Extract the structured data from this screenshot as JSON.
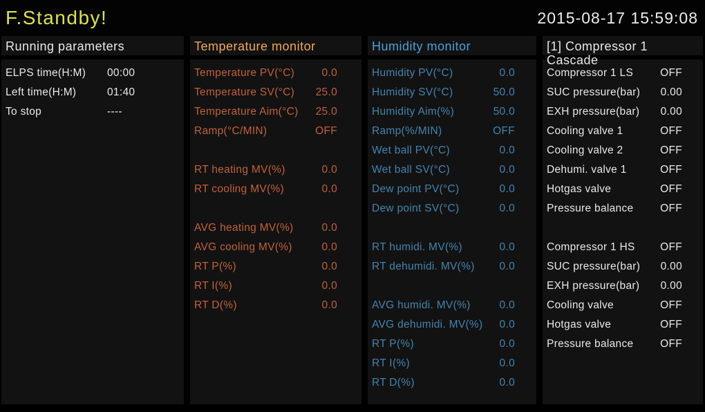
{
  "titlebar": {
    "title": "F.Standby!",
    "datetime": "2015-08-17 15:59:08"
  },
  "colors": {
    "title_green": "#dde24b",
    "text_white": "#e9e9e9",
    "temperature_header_orange": "#f0a855",
    "temperature_row_orange": "#c2613a",
    "humidity_header_blue": "#4aa0d8",
    "humidity_row_blue": "#4384b0",
    "panel_background": "#121212",
    "page_background": "#000000"
  },
  "panels": [
    {
      "header": "Running parameters",
      "header_color": "#e9e9e9",
      "row_color": "#e9e9e9",
      "rows": [
        {
          "label": "ELPS time(H:M)",
          "value": "00:00"
        },
        {
          "label": "Left time(H:M)",
          "value": "01:40"
        },
        {
          "label": "To stop",
          "value": "----"
        }
      ]
    },
    {
      "header": "Temperature monitor",
      "header_color": "#f0a855",
      "row_color": "#c2613a",
      "rows": [
        {
          "label": "Temperature PV(°C)",
          "value": "0.0"
        },
        {
          "label": "Temperature SV(°C)",
          "value": "25.0"
        },
        {
          "label": "Temperature Aim(°C)",
          "value": "25.0"
        },
        {
          "label": "Ramp(°C/MIN)",
          "value": "OFF"
        },
        {
          "label": "",
          "value": ""
        },
        {
          "label": "RT heating MV(%)",
          "value": "0.0"
        },
        {
          "label": "RT cooling MV(%)",
          "value": "0.0"
        },
        {
          "label": "",
          "value": ""
        },
        {
          "label": "AVG heating MV(%)",
          "value": "0.0"
        },
        {
          "label": "AVG cooling MV(%)",
          "value": "0.0"
        },
        {
          "label": "RT P(%)",
          "value": "0.0"
        },
        {
          "label": "RT I(%)",
          "value": "0.0"
        },
        {
          "label": "RT D(%)",
          "value": "0.0"
        }
      ]
    },
    {
      "header": "Humidity monitor",
      "header_color": "#4aa0d8",
      "row_color": "#4384b0",
      "rows": [
        {
          "label": "Humidity PV(°C)",
          "value": "0.0"
        },
        {
          "label": "Humidity SV(°C)",
          "value": "50.0"
        },
        {
          "label": "Humidity Aim(%)",
          "value": "50.0"
        },
        {
          "label": "Ramp(%/MIN)",
          "value": "OFF"
        },
        {
          "label": "Wet ball PV(°C)",
          "value": "0.0"
        },
        {
          "label": "Wet ball SV(°C)",
          "value": "0.0"
        },
        {
          "label": "Dew point PV(°C)",
          "value": "0.0"
        },
        {
          "label": "Dew point SV(°C)",
          "value": "0.0"
        },
        {
          "label": "",
          "value": ""
        },
        {
          "label": "RT humidi. MV(%)",
          "value": "0.0"
        },
        {
          "label": "RT dehumidi. MV(%)",
          "value": "0.0"
        },
        {
          "label": "",
          "value": ""
        },
        {
          "label": "AVG humidi. MV(%)",
          "value": "0.0"
        },
        {
          "label": "AVG dehumidi. MV(%)",
          "value": "0.0"
        },
        {
          "label": "RT P(%)",
          "value": "0.0"
        },
        {
          "label": "RT I(%)",
          "value": "0.0"
        },
        {
          "label": "RT D(%)",
          "value": "0.0"
        }
      ]
    },
    {
      "header": "[1] Compressor 1\nCascade",
      "header_color": "#e9e9e9",
      "row_color": "#e9e9e9",
      "rows": [
        {
          "label": "Compressor 1 LS",
          "value": "OFF"
        },
        {
          "label": "SUC pressure(bar)",
          "value": "0.00"
        },
        {
          "label": "EXH pressure(bar)",
          "value": "0.00"
        },
        {
          "label": "Cooling valve 1",
          "value": "OFF"
        },
        {
          "label": "Cooling valve 2",
          "value": "OFF"
        },
        {
          "label": "Dehumi. valve 1",
          "value": "OFF"
        },
        {
          "label": "Hotgas valve",
          "value": "OFF"
        },
        {
          "label": "Pressure balance",
          "value": "OFF"
        },
        {
          "label": "",
          "value": ""
        },
        {
          "label": "Compressor 1 HS",
          "value": "OFF"
        },
        {
          "label": "SUC pressure(bar)",
          "value": "0.00"
        },
        {
          "label": "EXH pressure(bar)",
          "value": "0.00"
        },
        {
          "label": "Cooling valve",
          "value": "OFF"
        },
        {
          "label": "Hotgas valve",
          "value": "OFF"
        },
        {
          "label": "Pressure balance",
          "value": "OFF"
        }
      ]
    }
  ]
}
